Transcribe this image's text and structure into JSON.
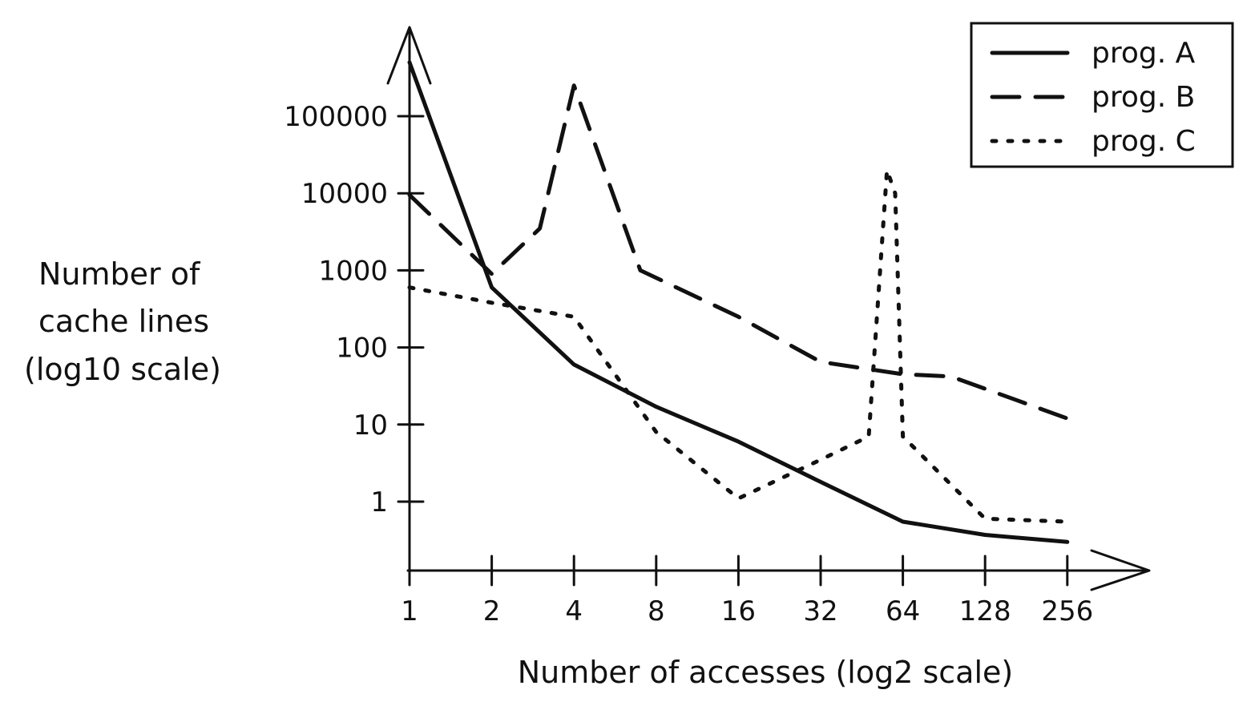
{
  "chart_data": {
    "type": "line",
    "title": "",
    "xlabel": "Number of accesses (log2 scale)",
    "ylabel_lines": [
      "Number of",
      "cache lines",
      "(log10 scale)"
    ],
    "x_scale": "log2",
    "y_scale": "log10",
    "xlim": [
      1,
      400
    ],
    "ylim": [
      0.25,
      2000000
    ],
    "x_ticks": [
      1,
      2,
      4,
      8,
      16,
      32,
      64,
      128,
      256
    ],
    "x_tick_labels": [
      "1",
      "2",
      "4",
      "8",
      "16",
      "32",
      "64",
      "128",
      "256"
    ],
    "y_ticks": [
      1,
      10,
      100,
      1000,
      10000,
      100000
    ],
    "y_tick_labels": [
      "1",
      "10",
      "100",
      "1000",
      "10000",
      "100000"
    ],
    "grid": false,
    "legend_position": "top-right",
    "series": [
      {
        "name": "prog. A",
        "style": "solid",
        "x": [
          1,
          2,
          4,
          8,
          16,
          32,
          64,
          128,
          256
        ],
        "y": [
          500000,
          600,
          60,
          17,
          6,
          1.8,
          0.55,
          0.37,
          0.3
        ]
      },
      {
        "name": "prog. B",
        "style": "dashed",
        "x": [
          1,
          2,
          3,
          4,
          7,
          16,
          32,
          64,
          96,
          256
        ],
        "y": [
          9500,
          900,
          3500,
          250000,
          1000,
          250,
          65,
          45,
          42,
          12
        ]
      },
      {
        "name": "prog. C",
        "style": "dotted",
        "x": [
          1,
          2,
          4,
          8,
          16,
          32,
          48,
          56,
          60,
          64,
          128,
          256
        ],
        "y": [
          600,
          380,
          250,
          8,
          1.1,
          3.5,
          7,
          20000,
          10000,
          7,
          0.6,
          0.55
        ]
      }
    ],
    "colors": {
      "line": "#111111",
      "background": "#ffffff"
    }
  }
}
